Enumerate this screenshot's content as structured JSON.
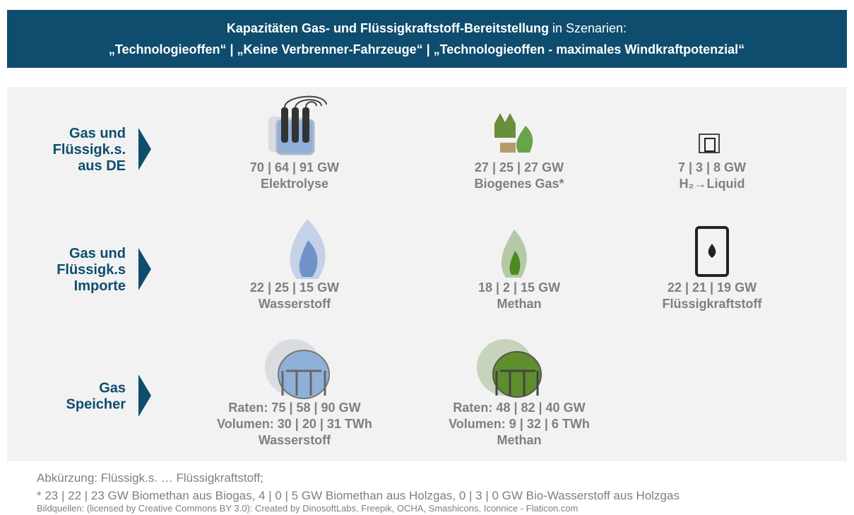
{
  "header": {
    "title_bold": "Kapazitäten Gas- und Flüssigkraftstoff-Bereitstellung",
    "title_rest": "in Szenarien:",
    "subtitle": "„Technologieoffen“ | „Keine Verbrenner-Fahrzeuge“ | „Technologieoffen - maximales Windkraftpotenzial“"
  },
  "rows": [
    {
      "label": [
        "Gas und",
        "Flüssigk.s.",
        "aus DE"
      ],
      "items": [
        {
          "lines": [
            "70 | 64 | 91 GW",
            "Elektrolyse"
          ]
        },
        {
          "lines": [
            "27 | 25 | 27 GW",
            "Biogenes Gas*"
          ]
        },
        {
          "lines": [
            "7 | 3 | 8 GW",
            "H₂→Liquid"
          ]
        }
      ]
    },
    {
      "label": [
        "Gas und",
        "Flüssigk.s",
        "Importe"
      ],
      "items": [
        {
          "lines": [
            "22 | 25 | 15 GW",
            "Wasserstoff"
          ]
        },
        {
          "lines": [
            "18 | 2 | 15 GW",
            "Methan"
          ]
        },
        {
          "lines": [
            "22 | 21 | 19 GW",
            "Flüssigkraftstoff"
          ]
        }
      ]
    },
    {
      "label": [
        "Gas",
        "Speicher"
      ],
      "items": [
        {
          "lines": [
            "Raten: 75 | 58 | 90 GW",
            "Volumen: 30 | 20 | 31 TWh",
            "Wasserstoff"
          ]
        },
        {
          "lines": [
            "Raten: 48 | 82 | 40 GW",
            "Volumen: 9 | 32 | 6 TWh",
            "Methan"
          ]
        }
      ]
    }
  ],
  "footer": {
    "abbreviation": "Abkürzung: Flüssigk.s. … Flüssigkraftstoff;",
    "note": "* 23 | 22 | 23 GW Biomethan aus Biogas, 4 | 0 | 5 GW Biomethan aus Holzgas, 0 | 3 | 0 GW Bio-Wasserstoff aus Holzgas",
    "sources": "Bildquellen: (licensed by Creative Commons BY 3.0): Created by DinosoftLabs, Freepik, OCHA, Smashicons, Iconnice - Flaticon.com"
  }
}
